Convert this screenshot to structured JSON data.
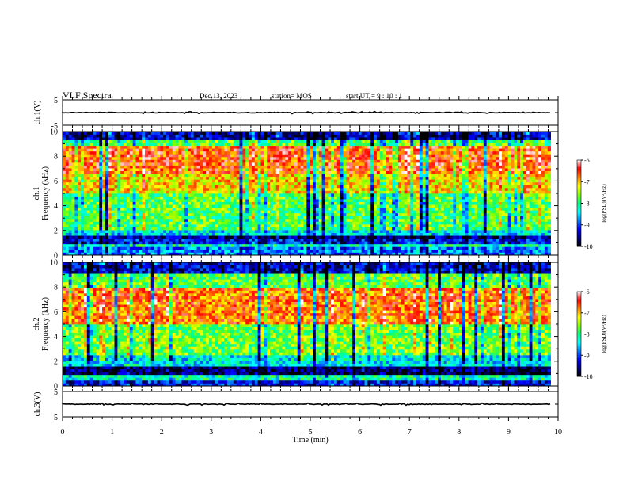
{
  "header": {
    "title": "VLF Spectra",
    "date": "Dec.13, 2023",
    "station": "station= MOS",
    "start": "start UT = 9 : 10 : 1"
  },
  "chart_data": {
    "type": "heatmap",
    "x_axis": {
      "label": "Time (min)",
      "range": [
        0,
        10
      ],
      "ticks": [
        "0",
        "1",
        "2",
        "3",
        "4",
        "5",
        "6",
        "7",
        "8",
        "9",
        "10"
      ]
    },
    "data_end_min": 9.85,
    "panels": [
      {
        "kind": "waveform",
        "ylabel": "ch.1(V)",
        "yrange": [
          -5,
          5
        ],
        "ticks": [
          "5",
          "-5"
        ],
        "level": 0
      },
      {
        "kind": "spectrogram",
        "ylabel_top": "ch.1",
        "ylabel_bottom": "Frequency (kHz)",
        "yrange": [
          0,
          10
        ],
        "ticks": [
          "0",
          "2",
          "4",
          "6",
          "8",
          "10"
        ],
        "bands": [
          {
            "from": 0.0,
            "to": 0.6,
            "level": 0.3
          },
          {
            "from": 0.6,
            "to": 1.0,
            "level": 0.45
          },
          {
            "from": 1.0,
            "to": 1.3,
            "level": 0.2
          },
          {
            "from": 1.3,
            "to": 1.7,
            "level": 0.1
          },
          {
            "from": 1.7,
            "to": 2.0,
            "level": 0.4
          },
          {
            "from": 2.0,
            "to": 5.0,
            "level": 0.55
          },
          {
            "from": 5.0,
            "to": 6.5,
            "level": 0.72
          },
          {
            "from": 6.5,
            "to": 8.8,
            "level": 0.85
          },
          {
            "from": 8.8,
            "to": 9.4,
            "level": 0.55
          },
          {
            "from": 9.4,
            "to": 10.0,
            "level": 0.15
          }
        ]
      },
      {
        "kind": "spectrogram",
        "ylabel_top": "ch.2",
        "ylabel_bottom": "Frequency (kHz)",
        "yrange": [
          0,
          10
        ],
        "ticks": [
          "0",
          "2",
          "4",
          "6",
          "8",
          "10"
        ],
        "bands": [
          {
            "from": 0.0,
            "to": 0.5,
            "level": 0.2
          },
          {
            "from": 0.5,
            "to": 1.0,
            "level": 0.45
          },
          {
            "from": 1.0,
            "to": 1.7,
            "level": 0.08
          },
          {
            "from": 1.7,
            "to": 2.5,
            "level": 0.4
          },
          {
            "from": 2.5,
            "to": 5.0,
            "level": 0.58
          },
          {
            "from": 5.0,
            "to": 8.0,
            "level": 0.82
          },
          {
            "from": 8.0,
            "to": 9.0,
            "level": 0.55
          },
          {
            "from": 9.0,
            "to": 10.0,
            "level": 0.15
          }
        ]
      },
      {
        "kind": "waveform",
        "ylabel": "ch.3(V)",
        "yrange": [
          -5,
          5
        ],
        "ticks": [
          "5",
          "-5"
        ],
        "level": 0
      }
    ],
    "colorbars": [
      {
        "label": "log(PSD)(V²/Hz)",
        "range": [
          -10,
          -6
        ],
        "ticks": [
          "-6",
          "-7",
          "-8",
          "-9",
          "-10"
        ]
      },
      {
        "label": "log(PSD)(V²/Hz)",
        "range": [
          -10,
          -6
        ],
        "ticks": [
          "-6",
          "-7",
          "-8",
          "-9",
          "-10"
        ]
      }
    ],
    "colormap": [
      "#000000",
      "#00007f",
      "#0000ff",
      "#0080ff",
      "#00ffff",
      "#00ff80",
      "#80ff00",
      "#ffff00",
      "#ff8000",
      "#ff0000",
      "#ffffff"
    ]
  }
}
